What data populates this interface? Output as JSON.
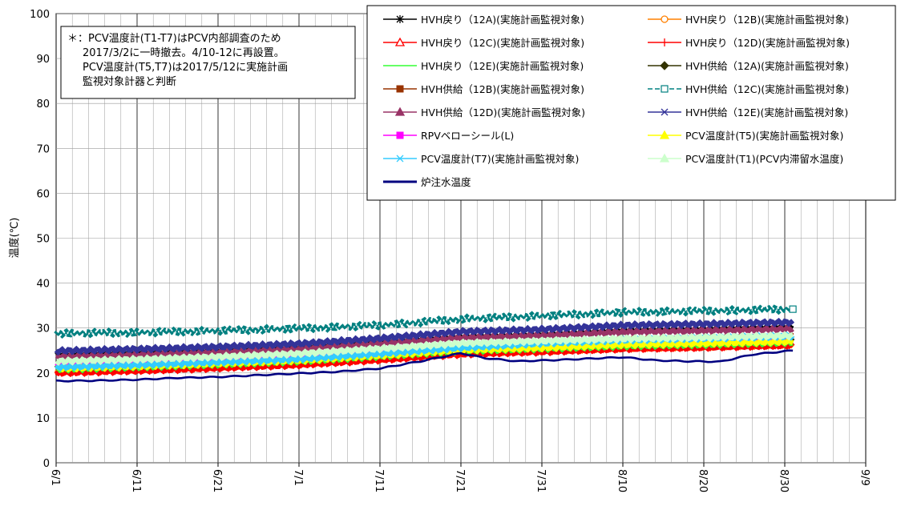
{
  "chart_data": {
    "type": "line",
    "ylabel": "温度(℃)",
    "ylim": [
      0,
      100
    ],
    "yticks": [
      0,
      10,
      20,
      30,
      40,
      50,
      60,
      70,
      80,
      90,
      100
    ],
    "xlim": [
      "2017-06-01",
      "2017-09-09"
    ],
    "xticks": [
      "6/1",
      "6/11",
      "6/21",
      "7/1",
      "7/11",
      "7/21",
      "7/31",
      "8/10",
      "8/20",
      "8/30",
      "9/9"
    ],
    "grid": true,
    "legend_position": "top-right",
    "annotation": [
      "＊：PCV温度計(T1-T7)はPCV内部調査のため",
      "2017/3/2に一時撤去。4/10-12に再設置。",
      "PCV温度計(T5,T7)は2017/5/12に実施計画",
      "監視対象計器と判断"
    ],
    "series": [
      {
        "name": "HVH戻り（12A)(実施計画監視対象)",
        "color": "#000000",
        "marker": "asterisk",
        "x": [
          "2017-06-01",
          "2017-06-11",
          "2017-06-21",
          "2017-07-01",
          "2017-07-11",
          "2017-07-21",
          "2017-07-31",
          "2017-08-10",
          "2017-08-20",
          "2017-08-31"
        ],
        "y": [
          24.0,
          24.4,
          24.9,
          25.6,
          26.8,
          28.0,
          28.5,
          29.4,
          29.7,
          30.2
        ]
      },
      {
        "name": "HVH戻り（12B)(実施計画監視対象)",
        "color": "#FF8000",
        "marker": "circle",
        "x": [
          "2017-06-01",
          "2017-06-11",
          "2017-06-21",
          "2017-07-01",
          "2017-07-11",
          "2017-07-21",
          "2017-07-31",
          "2017-08-10",
          "2017-08-20",
          "2017-08-31"
        ],
        "y": [
          20.4,
          20.9,
          21.5,
          22.2,
          23.3,
          24.5,
          25.0,
          25.6,
          25.9,
          26.4
        ]
      },
      {
        "name": "HVH戻り（12C)(実施計画監視対象)",
        "color": "#FF0000",
        "marker": "triangle",
        "x": [
          "2017-06-01",
          "2017-06-11",
          "2017-06-21",
          "2017-07-01",
          "2017-07-11",
          "2017-07-21",
          "2017-07-31",
          "2017-08-10",
          "2017-08-20",
          "2017-08-31"
        ],
        "y": [
          20.2,
          20.7,
          21.3,
          22.0,
          23.1,
          24.4,
          24.9,
          25.5,
          25.8,
          26.3
        ]
      },
      {
        "name": "HVH戻り（12D)(実施計画監視対象)",
        "color": "#FF0000",
        "marker": "plus",
        "x": [
          "2017-06-01",
          "2017-06-11",
          "2017-06-21",
          "2017-07-01",
          "2017-07-11",
          "2017-07-21",
          "2017-07-31",
          "2017-08-10",
          "2017-08-20",
          "2017-08-31"
        ],
        "y": [
          20.0,
          20.5,
          21.1,
          21.8,
          22.9,
          24.2,
          24.7,
          25.4,
          25.7,
          26.2
        ]
      },
      {
        "name": "HVH戻り（12E)(実施計画監視対象)",
        "color": "#33FF33",
        "marker": "dash",
        "x": [
          "2017-06-01",
          "2017-06-11",
          "2017-06-21",
          "2017-07-01",
          "2017-07-11",
          "2017-07-21",
          "2017-07-31",
          "2017-08-10",
          "2017-08-20",
          "2017-08-31"
        ],
        "y": [
          20.8,
          21.3,
          21.9,
          22.6,
          23.7,
          24.9,
          25.4,
          26.0,
          26.3,
          26.8
        ]
      },
      {
        "name": "HVH供給（12A)(実施計画監視対象)",
        "color": "#333300",
        "marker": "diamond",
        "x": [
          "2017-06-01",
          "2017-06-11",
          "2017-06-21",
          "2017-07-01",
          "2017-07-11",
          "2017-07-21",
          "2017-07-31",
          "2017-08-10",
          "2017-08-20",
          "2017-08-31"
        ],
        "y": [
          21.5,
          22.0,
          22.6,
          23.3,
          24.4,
          25.6,
          26.1,
          26.8,
          27.1,
          27.5
        ]
      },
      {
        "name": "HVH供給（12B)(実施計画監視対象)",
        "color": "#993300",
        "marker": "square",
        "x": [
          "2017-06-01",
          "2017-06-11",
          "2017-06-21",
          "2017-07-01",
          "2017-07-11",
          "2017-07-21",
          "2017-07-31",
          "2017-08-10",
          "2017-08-20",
          "2017-08-31"
        ],
        "y": [
          22.2,
          22.7,
          23.3,
          24.0,
          25.1,
          26.3,
          26.8,
          27.5,
          27.8,
          28.2
        ]
      },
      {
        "name": "HVH供給（12C)(実施計画監視対象)",
        "color": "#008080",
        "marker": "square-open",
        "dashed": true,
        "x": [
          "2017-06-01",
          "2017-06-11",
          "2017-06-21",
          "2017-07-01",
          "2017-07-11",
          "2017-07-21",
          "2017-07-31",
          "2017-08-10",
          "2017-08-20",
          "2017-08-31"
        ],
        "y": [
          28.8,
          29.0,
          29.4,
          29.9,
          30.6,
          32.0,
          32.7,
          33.5,
          33.8,
          34.2
        ]
      },
      {
        "name": "HVH供給（12D)(実施計画監視対象)",
        "color": "#993366",
        "marker": "triangle",
        "x": [
          "2017-06-01",
          "2017-06-11",
          "2017-06-21",
          "2017-07-01",
          "2017-07-11",
          "2017-07-21",
          "2017-07-31",
          "2017-08-10",
          "2017-08-20",
          "2017-08-31"
        ],
        "y": [
          23.6,
          24.0,
          24.6,
          25.3,
          26.5,
          27.8,
          28.3,
          29.1,
          29.4,
          29.8
        ]
      },
      {
        "name": "HVH供給（12E)(実施計画監視対象)",
        "color": "#333399",
        "marker": "x",
        "x": [
          "2017-06-01",
          "2017-06-11",
          "2017-06-21",
          "2017-07-01",
          "2017-07-11",
          "2017-07-21",
          "2017-07-31",
          "2017-08-10",
          "2017-08-20",
          "2017-08-31"
        ],
        "y": [
          24.9,
          25.3,
          25.8,
          26.5,
          27.7,
          29.2,
          29.7,
          30.6,
          30.9,
          31.3
        ]
      },
      {
        "name": "RPVベローシール(L)",
        "color": "#FF00FF",
        "marker": "square",
        "x": [
          "2017-06-01",
          "2017-06-11",
          "2017-06-21",
          "2017-07-01",
          "2017-07-11",
          "2017-07-21",
          "2017-07-31",
          "2017-08-10",
          "2017-08-20",
          "2017-08-31"
        ],
        "y": [
          21.8,
          22.3,
          22.9,
          23.6,
          24.7,
          25.9,
          26.4,
          27.0,
          27.3,
          27.7
        ]
      },
      {
        "name": "PCV温度計(T5)(実施計画監視対象)",
        "color": "#FFFF00",
        "marker": "triangle",
        "x": [
          "2017-06-01",
          "2017-06-11",
          "2017-06-21",
          "2017-07-01",
          "2017-07-11",
          "2017-07-21",
          "2017-07-31",
          "2017-08-10",
          "2017-08-20",
          "2017-08-31"
        ],
        "y": [
          21.0,
          21.5,
          22.1,
          22.8,
          23.9,
          25.1,
          25.6,
          26.3,
          26.6,
          27.0
        ]
      },
      {
        "name": "PCV温度計(T7)(実施計画監視対象)",
        "color": "#33CCFF",
        "marker": "x",
        "x": [
          "2017-06-01",
          "2017-06-11",
          "2017-06-21",
          "2017-07-01",
          "2017-07-11",
          "2017-07-21",
          "2017-07-31",
          "2017-08-10",
          "2017-08-20",
          "2017-08-31"
        ],
        "y": [
          21.3,
          21.8,
          22.4,
          23.1,
          24.3,
          25.6,
          26.6,
          27.3,
          27.7,
          28.2
        ]
      },
      {
        "name": "PCV温度計(T1)(PCV内滞留水温度)",
        "color": "#CCFFCC",
        "marker": "triangle",
        "x": [
          "2017-06-01",
          "2017-06-11",
          "2017-06-21",
          "2017-07-01",
          "2017-07-11",
          "2017-07-21",
          "2017-07-31",
          "2017-08-10",
          "2017-08-20",
          "2017-08-31"
        ],
        "y": [
          22.6,
          23.0,
          23.6,
          24.3,
          25.4,
          26.6,
          27.1,
          27.6,
          27.9,
          28.3
        ]
      },
      {
        "name": "炉注水温度",
        "color": "#000080",
        "marker": "none",
        "x": [
          "2017-06-01",
          "2017-06-06",
          "2017-06-11",
          "2017-06-16",
          "2017-06-21",
          "2017-06-26",
          "2017-07-01",
          "2017-07-06",
          "2017-07-11",
          "2017-07-16",
          "2017-07-21",
          "2017-07-24",
          "2017-07-28",
          "2017-08-02",
          "2017-08-06",
          "2017-08-10",
          "2017-08-14",
          "2017-08-18",
          "2017-08-22",
          "2017-08-26",
          "2017-08-31"
        ],
        "y": [
          18.2,
          18.3,
          18.5,
          18.9,
          19.1,
          19.5,
          19.9,
          20.3,
          21.0,
          22.6,
          24.4,
          23.3,
          22.6,
          22.9,
          23.2,
          23.5,
          22.8,
          22.6,
          22.5,
          24.1,
          25.0
        ]
      }
    ]
  }
}
